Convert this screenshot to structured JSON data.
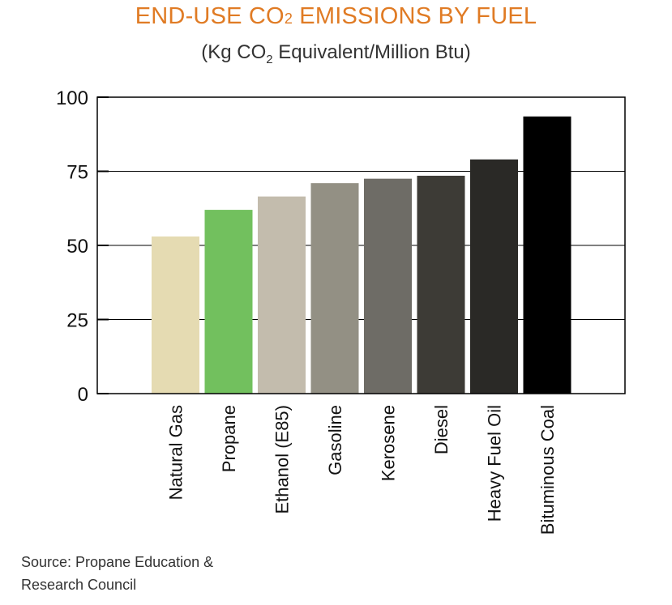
{
  "title_parts": {
    "main": "END-USE CO",
    "sub": "2",
    "rest": " EMISSIONS BY FUEL"
  },
  "subtitle_parts": {
    "pre": "(Kg CO",
    "sub": "2",
    "rest": " Equivalent/Million Btu)"
  },
  "source_line1": "Source: Propane Education &",
  "source_line2": "Research Council",
  "colors": {
    "title": "#e07b24",
    "text": "#333333",
    "bars": [
      "#e5dbb2",
      "#72c05e",
      "#c3bcad",
      "#939084",
      "#6e6c66",
      "#3d3b36",
      "#2a2926",
      "#000000"
    ]
  },
  "chart_data": {
    "type": "bar",
    "categories": [
      "Natural Gas",
      "Propane",
      "Ethanol (E85)",
      "Gasoline",
      "Kerosene",
      "Diesel",
      "Heavy  Fuel Oil",
      "Bituminous Coal"
    ],
    "values": [
      53,
      62,
      66.5,
      71,
      72.5,
      73.5,
      79,
      93.5
    ],
    "ylim": [
      0,
      100
    ],
    "yticks": [
      "0",
      "25",
      "50",
      "75",
      "100"
    ],
    "ytick_values": [
      0,
      25,
      50,
      75,
      100
    ],
    "grid": true,
    "xlabel": "",
    "ylabel": ""
  }
}
